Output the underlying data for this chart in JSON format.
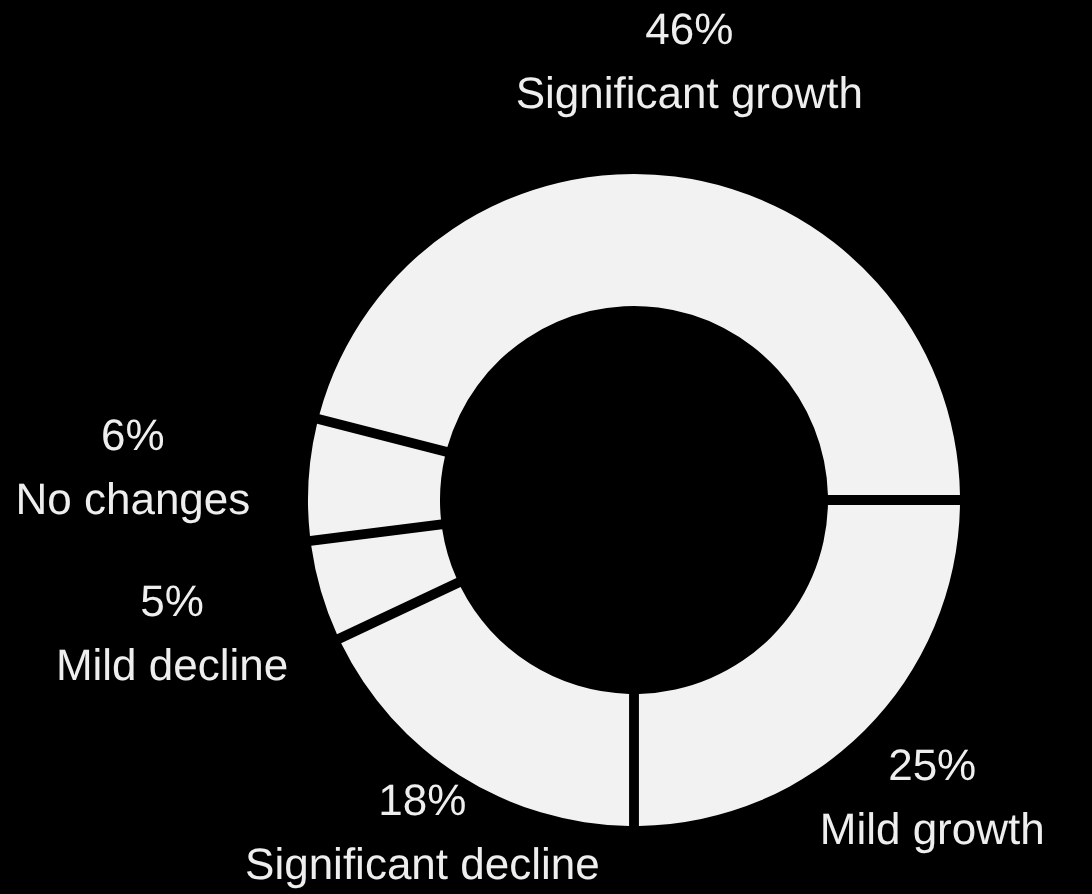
{
  "chart_data": {
    "type": "donut",
    "categories": [
      "Mild growth",
      "Significant decline",
      "Mild decline",
      "No changes",
      "Significant growth"
    ],
    "values": [
      25,
      18,
      5,
      6,
      46
    ],
    "colors": [
      "#f2f2f2",
      "#f2f2f2",
      "#f2f2f2",
      "#f2f2f2",
      "#f2f2f2"
    ],
    "value_labels": [
      "25%",
      "18%",
      "5%",
      "6%",
      "46%"
    ]
  }
}
